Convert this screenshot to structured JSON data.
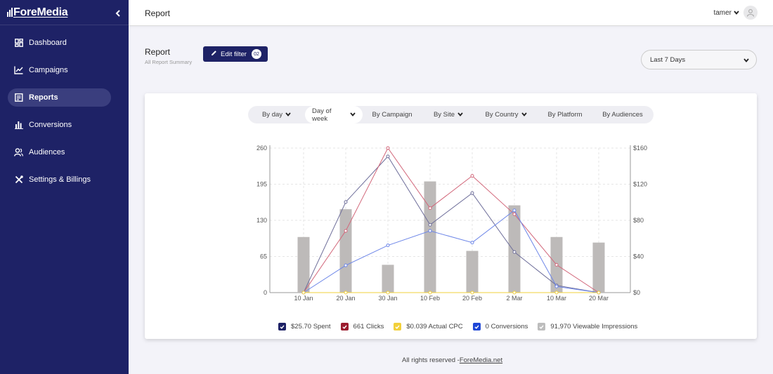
{
  "brand": {
    "name": "ForeMedia"
  },
  "sidebar": {
    "items": [
      {
        "label": "Dashboard",
        "icon": "dashboard-icon",
        "active": false
      },
      {
        "label": "Campaigns",
        "icon": "line-chart-icon",
        "active": false
      },
      {
        "label": "Reports",
        "icon": "report-icon",
        "active": true
      },
      {
        "label": "Conversions",
        "icon": "bar-chart-icon",
        "active": false
      },
      {
        "label": "Audiences",
        "icon": "users-icon",
        "active": false
      },
      {
        "label": "Settings & Billings",
        "icon": "tools-icon",
        "active": false
      }
    ]
  },
  "header": {
    "title": "Report",
    "user": "tamer"
  },
  "report": {
    "title": "Report",
    "subtitle": "All Report Summary",
    "edit_filter_label": "Edit filter",
    "filter_count": "02",
    "date_range": "Last 7 Days"
  },
  "tabs": [
    {
      "label": "By day",
      "dropdown": true,
      "active": false
    },
    {
      "label": "Day of week",
      "dropdown": true,
      "active": true
    },
    {
      "label": "By Campaign",
      "dropdown": false,
      "active": false
    },
    {
      "label": "By Site",
      "dropdown": true,
      "active": false
    },
    {
      "label": "By Country",
      "dropdown": true,
      "active": false
    },
    {
      "label": "By Platform",
      "dropdown": false,
      "active": false
    },
    {
      "label": "By Audiences",
      "dropdown": false,
      "active": false
    }
  ],
  "legend": [
    {
      "label": "$25.70 Spent",
      "color": "#1e2266"
    },
    {
      "label": "661 Clicks",
      "color": "#9b1c2e"
    },
    {
      "label": "$0.039 Actual CPC",
      "color": "#f2d03b"
    },
    {
      "label": "0 Conversions",
      "color": "#1f47d6"
    },
    {
      "label": "91,970 Viewable Impressions",
      "color": "#bdbdbd"
    }
  ],
  "chart_data": {
    "type": "bar",
    "categories": [
      "10 Jan",
      "20 Jan",
      "30 Jan",
      "10 Feb",
      "20 Feb",
      "2 Mar",
      "10 Mar",
      "20 Mar"
    ],
    "y_left": {
      "ticks": [
        "0",
        "65",
        "130",
        "195",
        "260"
      ],
      "range": [
        0,
        260
      ]
    },
    "y_right": {
      "ticks": [
        "$0",
        "$40",
        "$80",
        "$120",
        "$160"
      ],
      "range": [
        0,
        160
      ]
    },
    "grid": true,
    "series": [
      {
        "type": "bar",
        "axis": "left",
        "color": "#bdbab9",
        "values": [
          100,
          150,
          50,
          200,
          75,
          157,
          100,
          90
        ]
      },
      {
        "type": "line",
        "axis": "left",
        "color": "#6e6e9a",
        "values": [
          0,
          163,
          245,
          122,
          179,
          73,
          13,
          0
        ]
      },
      {
        "type": "line",
        "axis": "left",
        "color": "#d2677a",
        "values": [
          0,
          111,
          260,
          152,
          210,
          141,
          50,
          0
        ]
      },
      {
        "type": "line",
        "axis": "left",
        "color": "#6d86e8",
        "values": [
          0,
          49,
          85,
          111,
          90,
          148,
          11,
          0
        ]
      },
      {
        "type": "line",
        "axis": "left",
        "color": "#f2d03b",
        "values": [
          0,
          0,
          0,
          0,
          0,
          0,
          0,
          0
        ]
      }
    ]
  },
  "footer": {
    "text": "All rights reserved -",
    "link": "ForeMedia.net"
  }
}
